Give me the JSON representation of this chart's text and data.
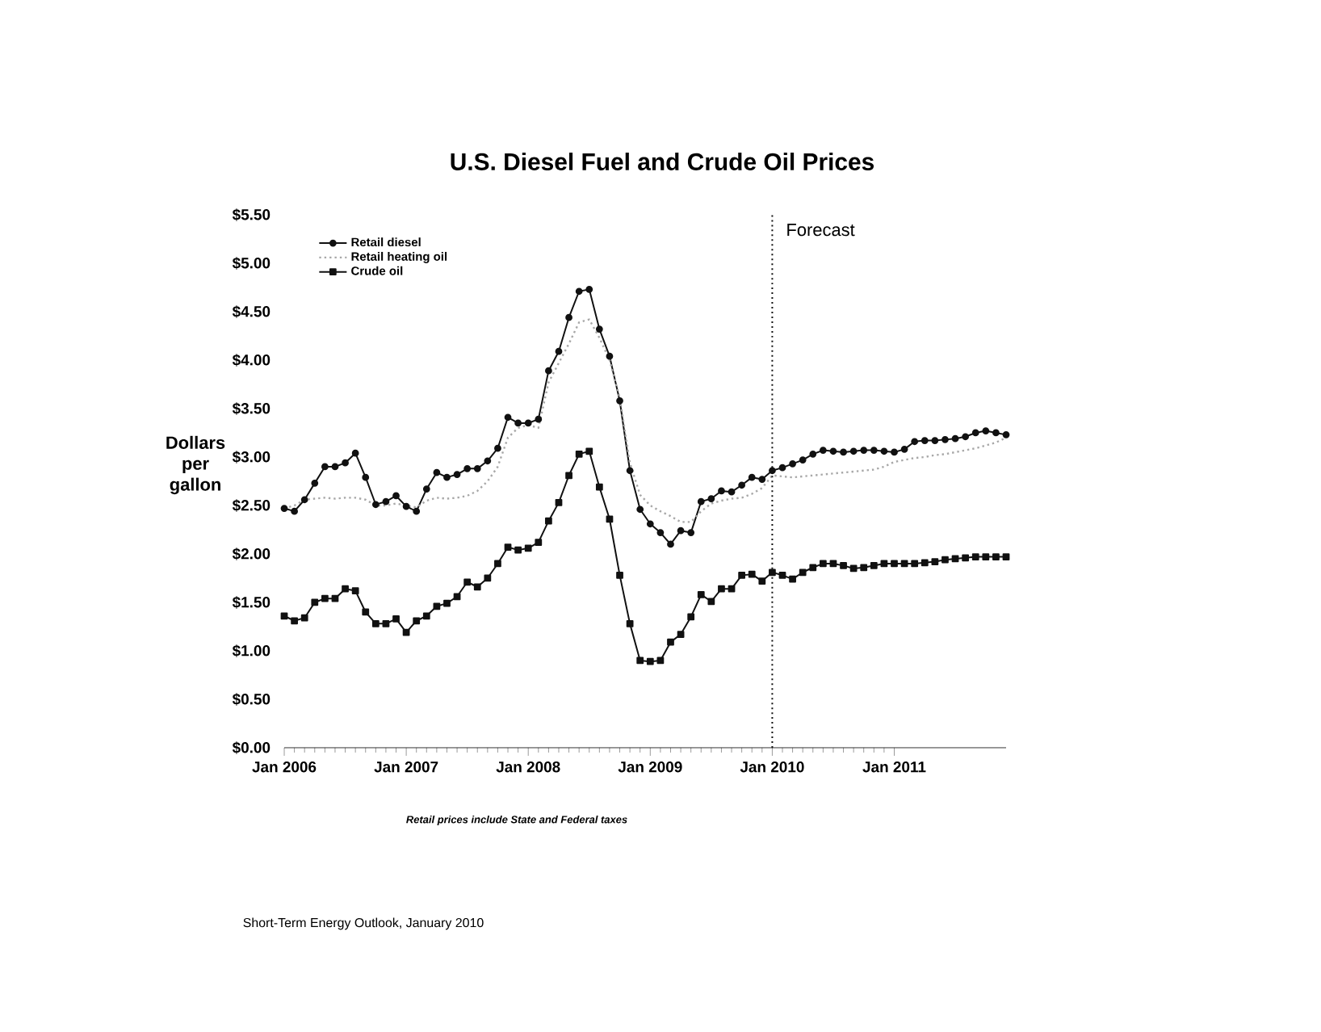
{
  "chart_data": {
    "type": "line",
    "title": "U.S. Diesel Fuel and Crude Oil Prices",
    "ylabel": "Dollars per gallon",
    "x": [
      "2006-01",
      "2006-02",
      "2006-03",
      "2006-04",
      "2006-05",
      "2006-06",
      "2006-07",
      "2006-08",
      "2006-09",
      "2006-10",
      "2006-11",
      "2006-12",
      "2007-01",
      "2007-02",
      "2007-03",
      "2007-04",
      "2007-05",
      "2007-06",
      "2007-07",
      "2007-08",
      "2007-09",
      "2007-10",
      "2007-11",
      "2007-12",
      "2008-01",
      "2008-02",
      "2008-03",
      "2008-04",
      "2008-05",
      "2008-06",
      "2008-07",
      "2008-08",
      "2008-09",
      "2008-10",
      "2008-11",
      "2008-12",
      "2009-01",
      "2009-02",
      "2009-03",
      "2009-04",
      "2009-05",
      "2009-06",
      "2009-07",
      "2009-08",
      "2009-09",
      "2009-10",
      "2009-11",
      "2009-12",
      "2010-01",
      "2010-02",
      "2010-03",
      "2010-04",
      "2010-05",
      "2010-06",
      "2010-07",
      "2010-08",
      "2010-09",
      "2010-10",
      "2010-11",
      "2010-12",
      "2011-01",
      "2011-02",
      "2011-03",
      "2011-04",
      "2011-05",
      "2011-06",
      "2011-07",
      "2011-08",
      "2011-09",
      "2011-10",
      "2011-11",
      "2011-12"
    ],
    "series": [
      {
        "name": "Retail diesel",
        "color": "#111111",
        "marker": "circle",
        "line_style": "solid",
        "values": [
          2.47,
          2.44,
          2.56,
          2.73,
          2.9,
          2.9,
          2.94,
          3.04,
          2.79,
          2.51,
          2.54,
          2.6,
          2.49,
          2.44,
          2.67,
          2.84,
          2.79,
          2.82,
          2.88,
          2.88,
          2.96,
          3.09,
          3.41,
          3.35,
          3.35,
          3.39,
          3.89,
          4.09,
          4.44,
          4.71,
          4.73,
          4.32,
          4.04,
          3.58,
          2.86,
          2.46,
          2.31,
          2.22,
          2.1,
          2.24,
          2.22,
          2.54,
          2.57,
          2.65,
          2.64,
          2.71,
          2.79,
          2.77,
          2.86,
          2.89,
          2.93,
          2.97,
          3.03,
          3.07,
          3.06,
          3.05,
          3.06,
          3.07,
          3.07,
          3.06,
          3.05,
          3.08,
          3.16,
          3.17,
          3.17,
          3.18,
          3.19,
          3.21,
          3.25,
          3.27,
          3.25,
          3.23
        ]
      },
      {
        "name": "Retail heating oil",
        "color": "#a8a8a8",
        "marker": "none",
        "line_style": "dotted",
        "values": [
          2.47,
          2.5,
          2.56,
          2.57,
          2.58,
          2.57,
          2.58,
          2.58,
          2.56,
          2.5,
          2.5,
          2.52,
          2.5,
          2.48,
          2.55,
          2.58,
          2.57,
          2.58,
          2.6,
          2.65,
          2.75,
          2.9,
          3.2,
          3.3,
          3.33,
          3.3,
          3.77,
          3.97,
          4.17,
          4.39,
          4.42,
          4.23,
          4.0,
          3.61,
          2.94,
          2.61,
          2.5,
          2.44,
          2.39,
          2.33,
          2.33,
          2.44,
          2.52,
          2.55,
          2.57,
          2.58,
          2.62,
          2.68,
          2.81,
          2.8,
          2.79,
          2.8,
          2.81,
          2.82,
          2.83,
          2.84,
          2.85,
          2.86,
          2.87,
          2.9,
          2.95,
          2.97,
          2.99,
          3.0,
          3.02,
          3.03,
          3.05,
          3.07,
          3.09,
          3.12,
          3.15,
          3.2
        ]
      },
      {
        "name": "Crude oil",
        "color": "#111111",
        "marker": "square",
        "line_style": "solid",
        "values": [
          1.36,
          1.31,
          1.34,
          1.5,
          1.54,
          1.54,
          1.64,
          1.62,
          1.4,
          1.28,
          1.28,
          1.33,
          1.19,
          1.31,
          1.36,
          1.46,
          1.49,
          1.56,
          1.71,
          1.66,
          1.75,
          1.9,
          2.07,
          2.04,
          2.06,
          2.12,
          2.34,
          2.53,
          2.81,
          3.03,
          3.06,
          2.69,
          2.36,
          1.78,
          1.28,
          0.9,
          0.89,
          0.9,
          1.09,
          1.17,
          1.35,
          1.58,
          1.51,
          1.64,
          1.64,
          1.78,
          1.79,
          1.72,
          1.81,
          1.78,
          1.74,
          1.81,
          1.86,
          1.9,
          1.9,
          1.88,
          1.85,
          1.86,
          1.88,
          1.9,
          1.9,
          1.9,
          1.9,
          1.91,
          1.92,
          1.94,
          1.95,
          1.96,
          1.97,
          1.97,
          1.97,
          1.97
        ]
      }
    ],
    "xlim": [
      "2006-01",
      "2011-12"
    ],
    "xticks": [
      {
        "value": "2006-01",
        "label": "Jan 2006"
      },
      {
        "value": "2007-01",
        "label": "Jan 2007"
      },
      {
        "value": "2008-01",
        "label": "Jan 2008"
      },
      {
        "value": "2009-01",
        "label": "Jan 2009"
      },
      {
        "value": "2010-01",
        "label": "Jan 2010"
      },
      {
        "value": "2011-01",
        "label": "Jan 2011"
      }
    ],
    "ylim": [
      0,
      5.5
    ],
    "yticks": [
      {
        "value": 0,
        "label": "$0.00"
      },
      {
        "value": 0.5,
        "label": "$0.50"
      },
      {
        "value": 1,
        "label": "$1.00"
      },
      {
        "value": 1.5,
        "label": "$1.50"
      },
      {
        "value": 2,
        "label": "$2.00"
      },
      {
        "value": 2.5,
        "label": "$2.50"
      },
      {
        "value": 3,
        "label": "$3.00"
      },
      {
        "value": 3.5,
        "label": "$3.50"
      },
      {
        "value": 4,
        "label": "$4.00"
      },
      {
        "value": 4.5,
        "label": "$4.50"
      },
      {
        "value": 5,
        "label": "$5.00"
      },
      {
        "value": 5.5,
        "label": "$5.50"
      }
    ],
    "ref_lines": [
      {
        "axis": "x",
        "value": "2010-01",
        "label": "Forecast",
        "color": "#111111",
        "line_style": "dotted"
      }
    ],
    "legend": "top left",
    "annotations": [
      "Retail prices include State and Federal taxes",
      "Short-Term Energy Outlook, January 2010"
    ]
  }
}
